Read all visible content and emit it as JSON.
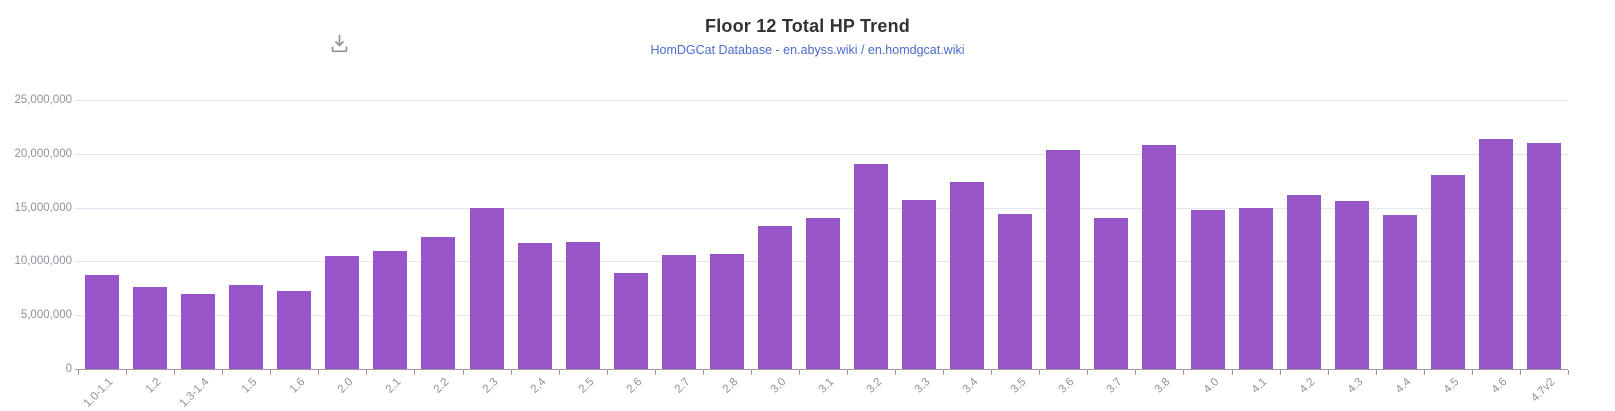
{
  "header": {
    "title": "Floor 12 Total HP Trend",
    "subtitle": "HomDGCat Database - en.abyss.wiki / en.homdgcat.wiki",
    "toolbox_icon": "download-icon"
  },
  "colors": {
    "bar": "#9855c8",
    "title": "#333333",
    "subtitle_link": "#4c6bce",
    "grid_line": "#e4e6f1",
    "axis_line": "#9a9da5",
    "axis_label": "#8e929c",
    "background": "#ffffff"
  },
  "chart_data": {
    "type": "bar",
    "title": "Floor 12 Total HP Trend",
    "subtitle": "HomDGCat Database - en.abyss.wiki / en.homdgcat.wiki",
    "categories": [
      "1.0-1.1",
      "1.2",
      "1.3-1.4",
      "1.5",
      "1.6",
      "2.0",
      "2.1",
      "2.2",
      "2.3",
      "2.4",
      "2.5",
      "2.6",
      "2.7",
      "2.8",
      "3.0",
      "3.1",
      "3.2",
      "3.3",
      "3.4",
      "3.5",
      "3.6",
      "3.7",
      "3.8",
      "4.0",
      "4.1",
      "4.2",
      "4.3",
      "4.4",
      "4.5",
      "4.6",
      "4.7v2"
    ],
    "values": [
      8700000,
      7650000,
      7000000,
      7800000,
      7250000,
      10500000,
      10950000,
      12300000,
      15000000,
      11700000,
      11800000,
      8900000,
      10550000,
      10700000,
      13250000,
      14000000,
      19050000,
      15700000,
      17350000,
      14450000,
      20350000,
      14050000,
      20800000,
      14750000,
      15000000,
      16200000,
      15600000,
      14350000,
      18050000,
      21400000,
      21050000
    ],
    "xlabel": "",
    "ylabel": "",
    "ylim": [
      0,
      25000000
    ],
    "ytick_interval": 5000000,
    "ytick_labels": [
      "0",
      "5,000,000",
      "10,000,000",
      "15,000,000",
      "20,000,000",
      "25,000,000"
    ],
    "grid": true,
    "legend": false,
    "bar_color": "#9855c8",
    "x_label_rotation": 45
  }
}
